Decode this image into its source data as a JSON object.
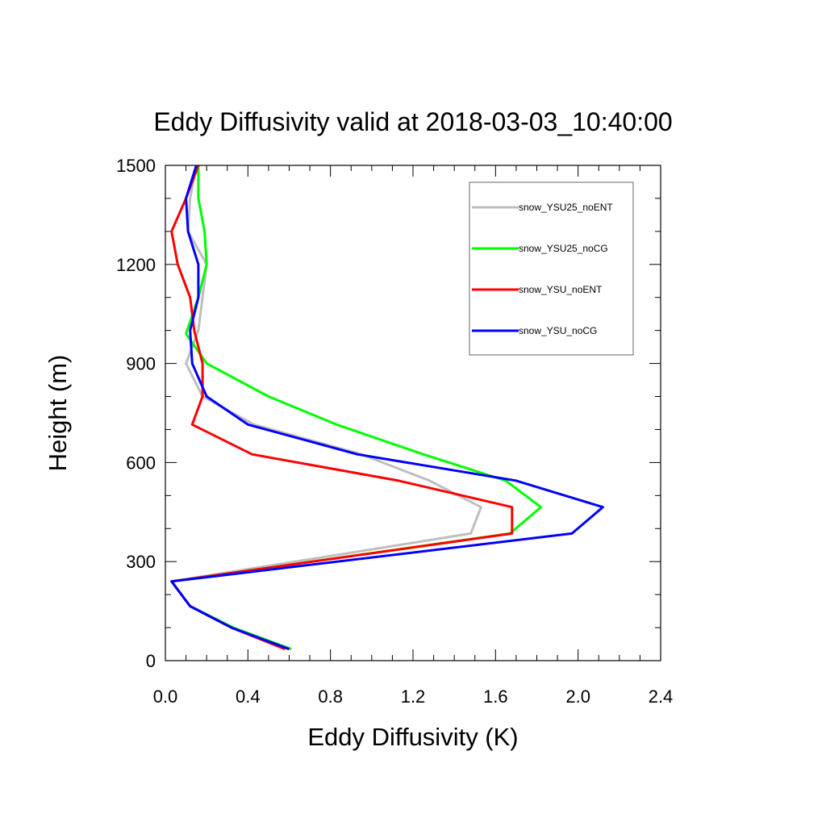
{
  "chart_data": {
    "type": "line",
    "title": "Eddy Diffusivity valid at 2018-03-03_10:40:00",
    "xlabel": "Eddy Diffusivity (K)",
    "ylabel": "Height (m)",
    "xlim": [
      0,
      2.4
    ],
    "ylim": [
      0,
      1500
    ],
    "xticks": [
      "0.0",
      "0.4",
      "0.8",
      "1.2",
      "1.6",
      "2.0",
      "2.4"
    ],
    "yticks": [
      "0",
      "300",
      "600",
      "900",
      "1200",
      "1500"
    ],
    "legend_position": "top-right",
    "series": [
      {
        "name": "snow_YSU25_noENT",
        "color": "#bebebe",
        "points": [
          [
            0.6,
            35
          ],
          [
            0.32,
            100
          ],
          [
            0.12,
            165
          ],
          [
            0.03,
            240
          ],
          [
            1.48,
            385
          ],
          [
            1.53,
            465
          ],
          [
            1.28,
            545
          ],
          [
            0.95,
            625
          ],
          [
            0.43,
            715
          ],
          [
            0.18,
            800
          ],
          [
            0.1,
            900
          ],
          [
            0.16,
            1000
          ],
          [
            0.18,
            1100
          ],
          [
            0.2,
            1200
          ],
          [
            0.11,
            1300
          ],
          [
            0.12,
            1400
          ],
          [
            0.15,
            1500
          ]
        ]
      },
      {
        "name": "snow_YSU25_noCG",
        "color": "#00ff00",
        "points": [
          [
            0.61,
            35
          ],
          [
            0.33,
            100
          ],
          [
            0.12,
            165
          ],
          [
            0.03,
            240
          ],
          [
            1.67,
            385
          ],
          [
            1.82,
            465
          ],
          [
            1.65,
            545
          ],
          [
            1.25,
            625
          ],
          [
            0.83,
            715
          ],
          [
            0.5,
            800
          ],
          [
            0.2,
            900
          ],
          [
            0.1,
            990
          ],
          [
            0.16,
            1100
          ],
          [
            0.2,
            1200
          ],
          [
            0.19,
            1300
          ],
          [
            0.16,
            1400
          ],
          [
            0.16,
            1500
          ]
        ]
      },
      {
        "name": "snow_YSU_noENT",
        "color": "#ff0000",
        "points": [
          [
            0.58,
            35
          ],
          [
            0.32,
            100
          ],
          [
            0.12,
            165
          ],
          [
            0.03,
            240
          ],
          [
            1.68,
            385
          ],
          [
            1.68,
            465
          ],
          [
            1.13,
            545
          ],
          [
            0.42,
            625
          ],
          [
            0.13,
            715
          ],
          [
            0.18,
            800
          ],
          [
            0.18,
            900
          ],
          [
            0.14,
            1000
          ],
          [
            0.12,
            1100
          ],
          [
            0.06,
            1200
          ],
          [
            0.03,
            1300
          ],
          [
            0.1,
            1400
          ],
          [
            0.16,
            1500
          ]
        ]
      },
      {
        "name": "snow_YSU_noCG",
        "color": "#0000ff",
        "points": [
          [
            0.6,
            35
          ],
          [
            0.32,
            100
          ],
          [
            0.12,
            165
          ],
          [
            0.03,
            240
          ],
          [
            1.97,
            385
          ],
          [
            2.12,
            465
          ],
          [
            1.7,
            545
          ],
          [
            0.93,
            625
          ],
          [
            0.4,
            715
          ],
          [
            0.2,
            800
          ],
          [
            0.13,
            900
          ],
          [
            0.12,
            1000
          ],
          [
            0.16,
            1100
          ],
          [
            0.16,
            1200
          ],
          [
            0.11,
            1300
          ],
          [
            0.1,
            1400
          ],
          [
            0.15,
            1500
          ]
        ]
      }
    ]
  }
}
